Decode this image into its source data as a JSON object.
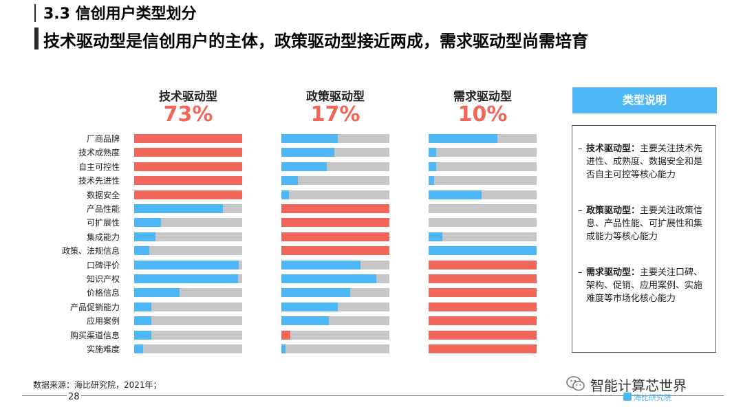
{
  "header": {
    "title": "3.3 信创用户类型划分",
    "subtitle": "技术驱动型是信创用户的主体，政策驱动型接近两成，需求驱动型尚需培育"
  },
  "colors": {
    "tech_fill": "#f0665a",
    "blue_fill": "#4db8f5",
    "track": "#c6c6c6",
    "accent_red": "#f0665a"
  },
  "chart_data": {
    "type": "bar",
    "orientation": "horizontal-stacked-percent",
    "categories": [
      "厂商品牌",
      "技术成熟度",
      "自主可控性",
      "技术先进性",
      "数据安全",
      "产品性能",
      "可扩展性",
      "集成能力",
      "政策、法规信息",
      "口碑评价",
      "知识产权",
      "价格信息",
      "产品促销能力",
      "应用案例",
      "购买渠道信息",
      "实施难度"
    ],
    "xlim": [
      0,
      1
    ],
    "groups": [
      {
        "name": "技术驱动型",
        "share": "73%",
        "values": [
          1.0,
          1.0,
          1.0,
          1.0,
          1.0,
          0.82,
          0.25,
          0.2,
          0.14,
          0.97,
          0.96,
          0.42,
          0.16,
          0.16,
          0.16,
          0.08
        ],
        "colors": [
          "red",
          "red",
          "red",
          "red",
          "red",
          "blue",
          "blue",
          "blue",
          "blue",
          "blue",
          "blue",
          "blue",
          "blue",
          "blue",
          "blue",
          "blue"
        ]
      },
      {
        "name": "政策驱动型",
        "share": "17%",
        "values": [
          0.52,
          0.49,
          0.42,
          0.15,
          0.07,
          1.0,
          1.0,
          1.0,
          1.0,
          0.73,
          0.88,
          0.64,
          0.52,
          0.44,
          0.08,
          0.04
        ],
        "colors": [
          "blue",
          "blue",
          "blue",
          "blue",
          "blue",
          "red",
          "red",
          "red",
          "red",
          "blue",
          "blue",
          "blue",
          "blue",
          "blue",
          "red",
          "blue"
        ]
      },
      {
        "name": "需求驱动型",
        "share": "10%",
        "values": [
          0.64,
          0.07,
          0.07,
          0.05,
          0.49,
          0.0,
          0.0,
          0.13,
          1.0,
          1.0,
          1.0,
          1.0,
          1.0,
          1.0,
          1.0,
          1.0
        ],
        "colors": [
          "blue",
          "blue",
          "blue",
          "blue",
          "blue",
          "blue",
          "blue",
          "blue",
          "blue",
          "red",
          "red",
          "red",
          "red",
          "red",
          "red",
          "red"
        ]
      }
    ]
  },
  "legend": {
    "title": "类型说明",
    "items": [
      {
        "name": "技术驱动型：",
        "text": "主要关注技术先进性、成熟度、数据安全和是否自主可控等核心能力"
      },
      {
        "name": "政策驱动型：",
        "text": "主要关注政策信息、产品性能、可扩展性和集成能力等核心能力"
      },
      {
        "name": "需求驱动型：",
        "text": "主要关注口碑、架构、促销、应用案例、实施难度等市场化核心能力"
      }
    ],
    "dash": "–"
  },
  "footer": {
    "source": "数据来源：海比研究院，2021年；",
    "page": "28",
    "brand": "智能计算芯世界",
    "logo_text": "海比研究院"
  }
}
